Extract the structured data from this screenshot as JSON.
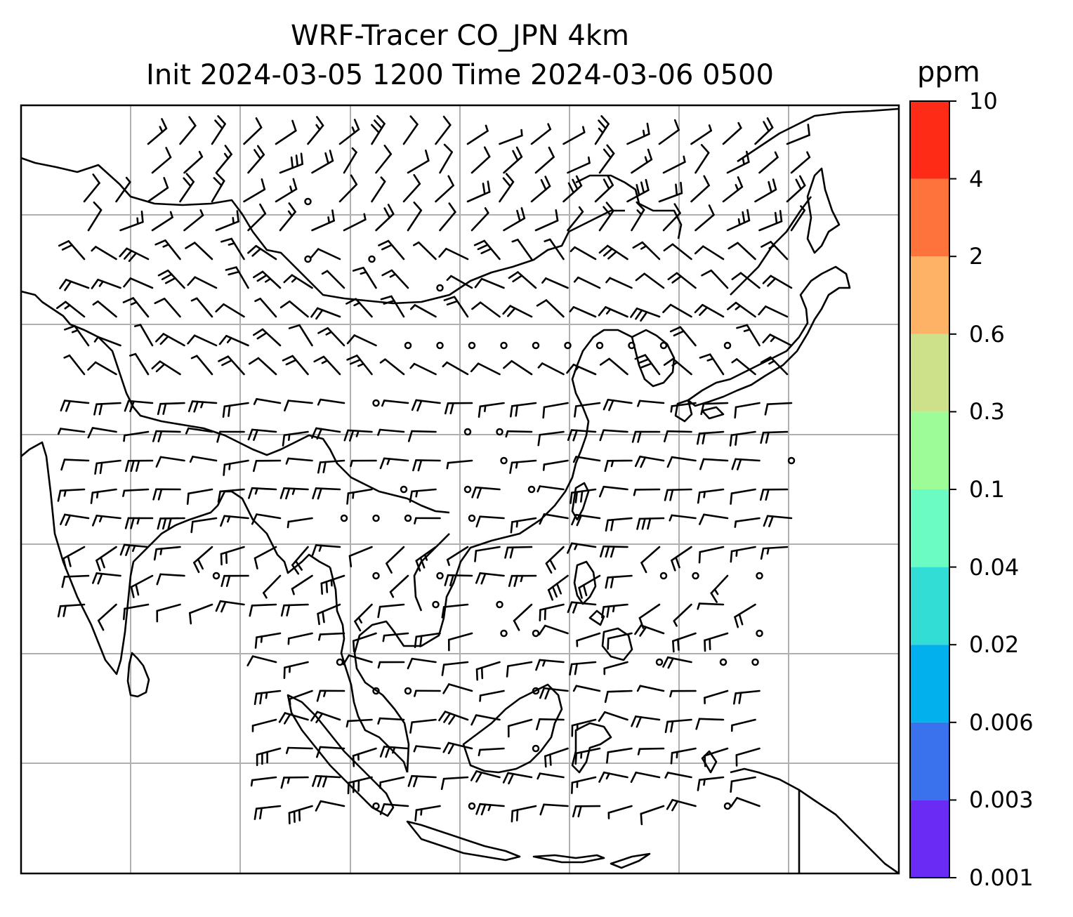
{
  "title": {
    "line1": "WRF-Tracer CO_JPN 4km",
    "line2": "Init 2024-03-05 1200 Time 2024-03-06 0500"
  },
  "colorbar": {
    "unit": "ppm",
    "levels": [
      "0.001",
      "0.003",
      "0.006",
      "0.02",
      "0.04",
      "0.1",
      "0.3",
      "0.6",
      "2",
      "4",
      "10"
    ],
    "colors": [
      "#6a2cf5",
      "#3a72ee",
      "#03b0ee",
      "#32ddd6",
      "#6afcc2",
      "#9efc98",
      "#cce18a",
      "#fdb266",
      "#fe733c",
      "#fe2c17"
    ]
  },
  "map": {
    "gridlines": true,
    "coastline_color": "#000000",
    "gridline_color": "#b0b0b0",
    "wind_barbs": true
  }
}
